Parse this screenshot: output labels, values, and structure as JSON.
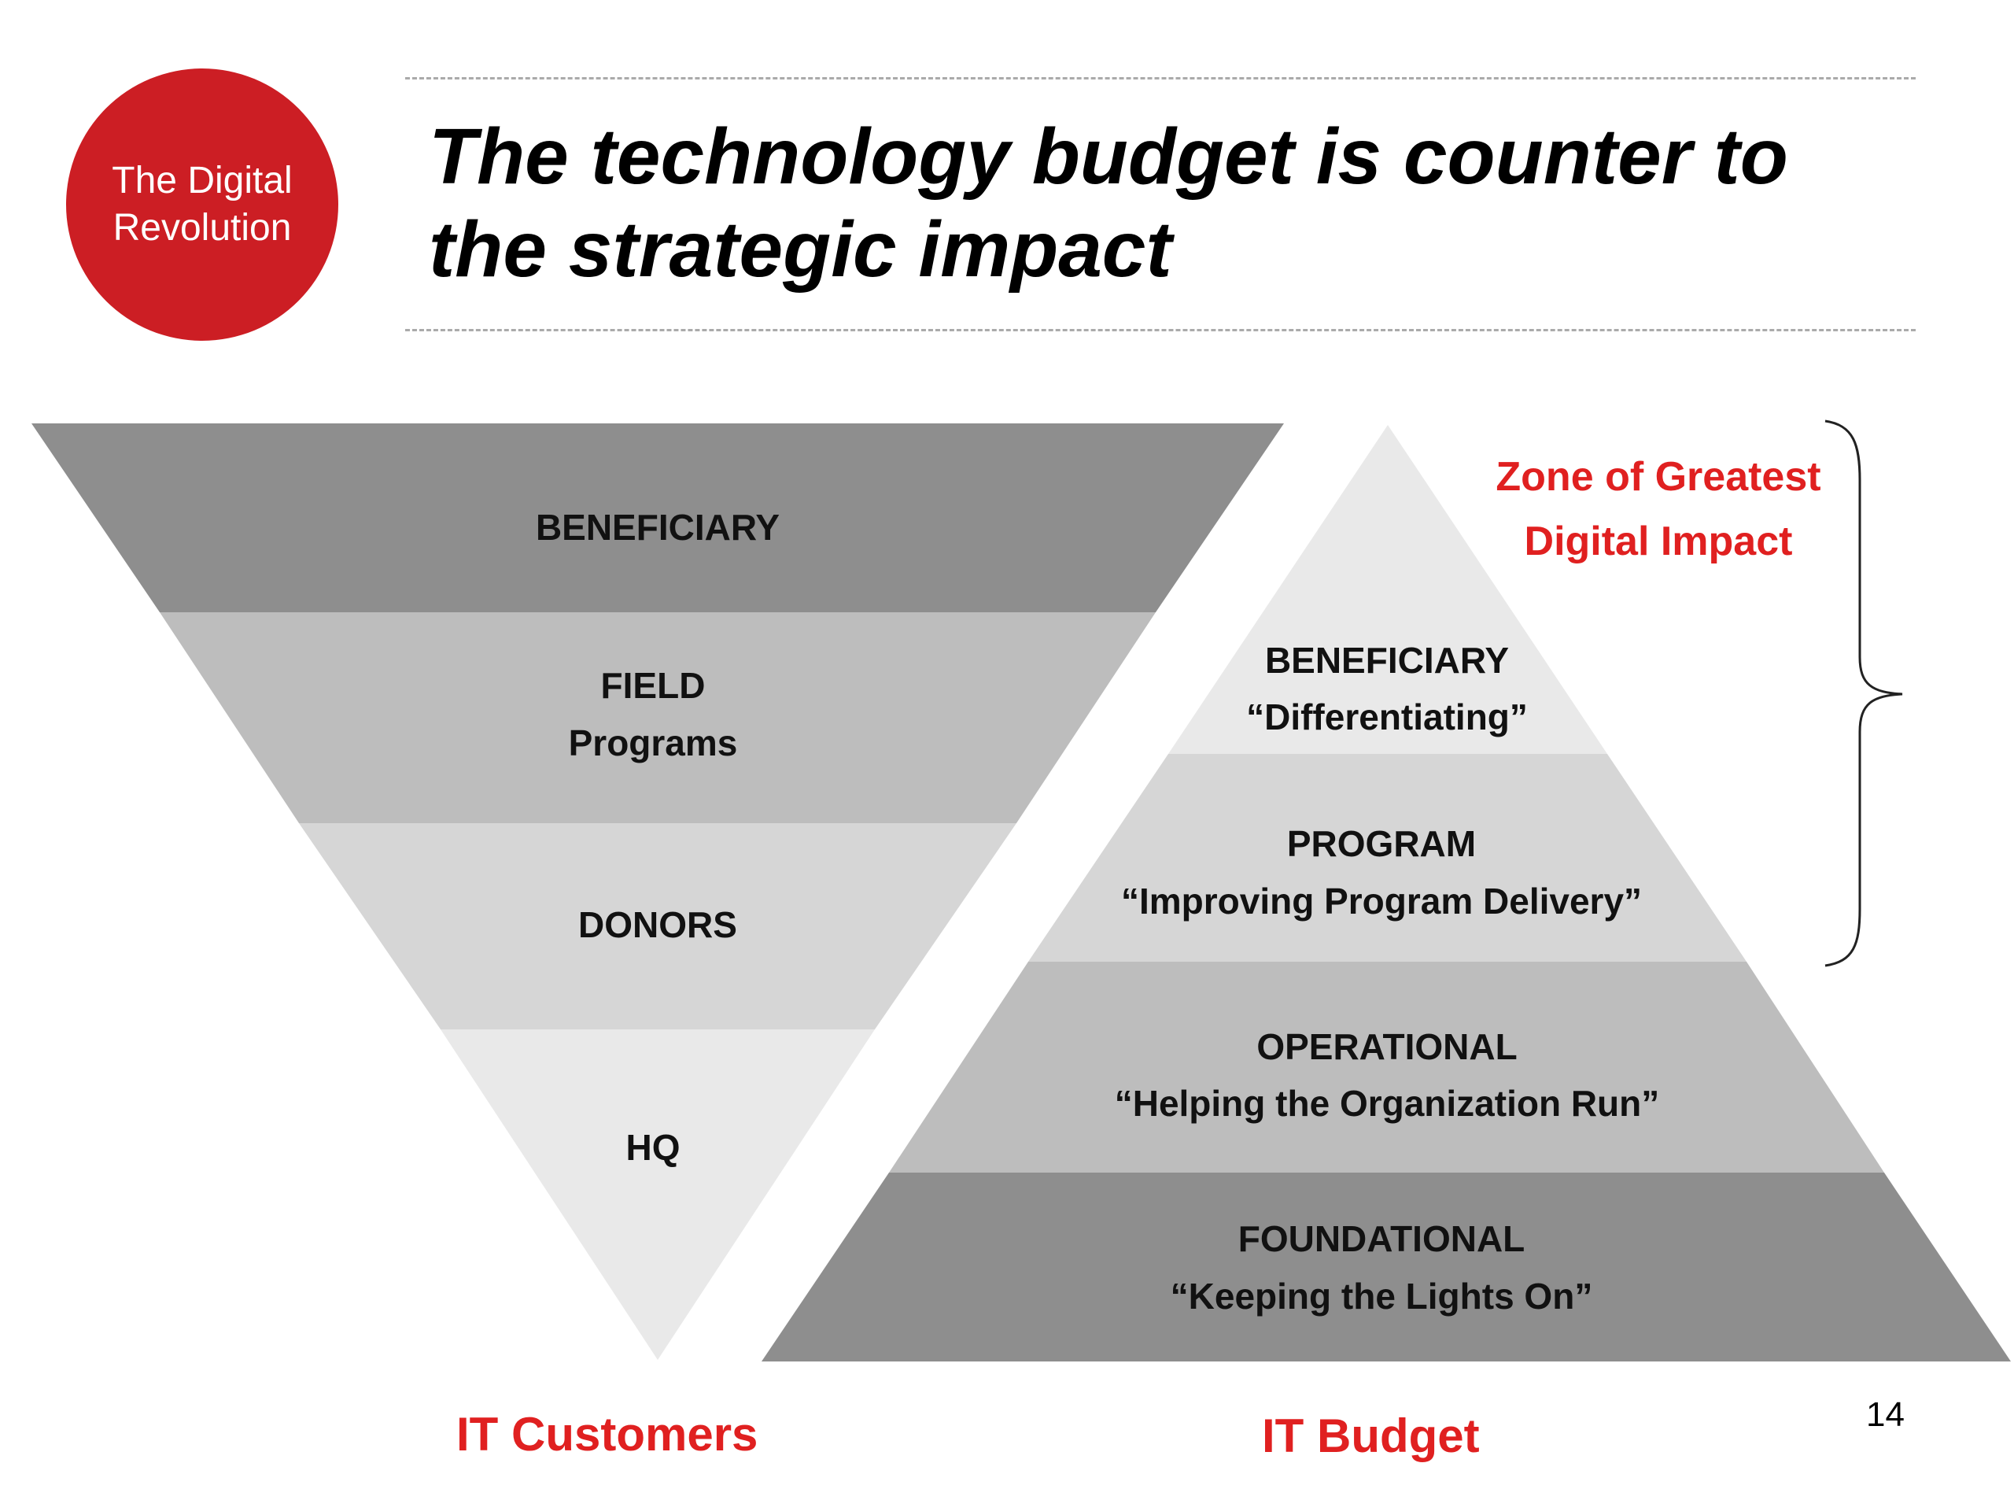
{
  "badge": {
    "line1": "The Digital",
    "line2": "Revolution",
    "color": "#cc1e24"
  },
  "title": {
    "line1": "The technology budget is counter to",
    "line2": "the strategic impact"
  },
  "customers": {
    "label": "IT Customers",
    "layers": [
      {
        "line1": "BENEFICIARY",
        "line2": "",
        "color": "#8e8e8e"
      },
      {
        "line1": "FIELD",
        "line2": "Programs",
        "color": "#bdbdbd"
      },
      {
        "line1": "DONORS",
        "line2": "",
        "color": "#d6d6d6"
      },
      {
        "line1": "HQ",
        "line2": "",
        "color": "#e9e9e9"
      }
    ]
  },
  "budget": {
    "label": "IT Budget",
    "layers": [
      {
        "line1": "BENEFICIARY",
        "line2": "“Differentiating”",
        "color": "#e9e9e9"
      },
      {
        "line1": "PROGRAM",
        "line2": "“Improving Program Delivery”",
        "color": "#d6d6d6"
      },
      {
        "line1": "OPERATIONAL",
        "line2": "“Helping the Organization Run”",
        "color": "#bdbdbd"
      },
      {
        "line1": "FOUNDATIONAL",
        "line2": "“Keeping the Lights On”",
        "color": "#8e8e8e"
      }
    ]
  },
  "zone": {
    "line1": "Zone of Greatest",
    "line2": "Digital Impact",
    "color": "#e02020"
  },
  "page_number": "14"
}
